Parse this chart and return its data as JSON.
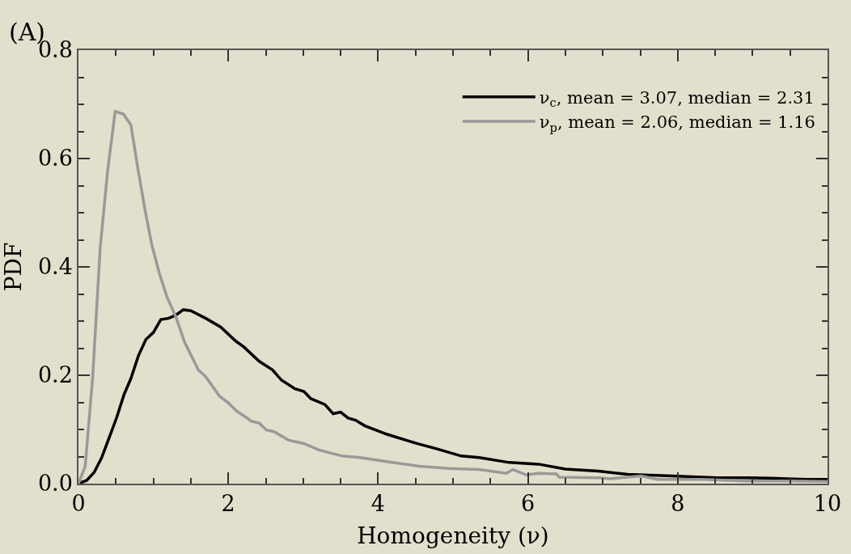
{
  "chart_data": {
    "type": "line",
    "title": "(A)",
    "xlabel": "Homogeneity (ν)",
    "ylabel": "PDF",
    "xlim": [
      0,
      10
    ],
    "ylim": [
      0,
      0.8
    ],
    "xticks": [
      0,
      {
        "value": 0.5,
        "label": null
      },
      {
        "value": 1,
        "label": null
      },
      {
        "value": 1.5,
        "label": null
      },
      2,
      {
        "value": 2.5,
        "label": null
      },
      {
        "value": 3,
        "label": null
      },
      {
        "value": 3.5,
        "label": null
      },
      4,
      {
        "value": 4.5,
        "label": null
      },
      {
        "value": 5,
        "label": null
      },
      {
        "value": 5.5,
        "label": null
      },
      6,
      {
        "value": 6.5,
        "label": null
      },
      {
        "value": 7,
        "label": null
      },
      {
        "value": 7.5,
        "label": null
      },
      8,
      {
        "value": 8.5,
        "label": null
      },
      {
        "value": 9,
        "label": null
      },
      {
        "value": 9.5,
        "label": null
      },
      10
    ],
    "yticks": [
      {
        "value": 0,
        "label": "0.0"
      },
      {
        "value": 0.05,
        "label": null
      },
      {
        "value": 0.1,
        "label": null
      },
      {
        "value": 0.15,
        "label": null
      },
      {
        "value": 0.2,
        "label": "0.2"
      },
      {
        "value": 0.25,
        "label": null
      },
      {
        "value": 0.3,
        "label": null
      },
      {
        "value": 0.35,
        "label": null
      },
      {
        "value": 0.4,
        "label": "0.4"
      },
      {
        "value": 0.45,
        "label": null
      },
      {
        "value": 0.5,
        "label": null
      },
      {
        "value": 0.55,
        "label": null
      },
      {
        "value": 0.6,
        "label": "0.6"
      },
      {
        "value": 0.65,
        "label": null
      },
      {
        "value": 0.7,
        "label": null
      },
      {
        "value": 0.75,
        "label": null
      },
      {
        "value": 0.8,
        "label": "0.8"
      }
    ],
    "grid": false,
    "legend": "top right",
    "line_style": "solid",
    "marker": "none",
    "series": [
      {
        "name": "ν$_{c}$, mean = 3.07, median = 2.31",
        "color": "#000000",
        "x": [
          0,
          0.11,
          0.21,
          0.31,
          0.41,
          0.51,
          0.61,
          0.7,
          0.8,
          0.9,
          1.0,
          1.1,
          1.2,
          1.3,
          1.4,
          1.5,
          1.7,
          1.9,
          2.1,
          2.21,
          2.41,
          2.59,
          2.71,
          2.89,
          3.01,
          3.1,
          3.29,
          3.4,
          3.5,
          3.6,
          3.7,
          3.82,
          4.12,
          4.52,
          4.79,
          5.11,
          5.35,
          5.75,
          6.14,
          6.5,
          6.94,
          7.33,
          7.93,
          8.52,
          8.92,
          9.24,
          9.71,
          10.0
        ],
        "values": [
          0,
          0.006,
          0.021,
          0.048,
          0.085,
          0.122,
          0.165,
          0.194,
          0.236,
          0.266,
          0.279,
          0.303,
          0.305,
          0.311,
          0.321,
          0.319,
          0.305,
          0.289,
          0.263,
          0.252,
          0.226,
          0.21,
          0.191,
          0.175,
          0.17,
          0.157,
          0.146,
          0.129,
          0.132,
          0.121,
          0.117,
          0.107,
          0.091,
          0.074,
          0.064,
          0.051,
          0.048,
          0.039,
          0.036,
          0.027,
          0.023,
          0.017,
          0.014,
          0.011,
          0.011,
          0.01,
          0.008,
          0.008
        ]
      },
      {
        "name": "ν$_{p}$, mean = 2.06, median = 1.16",
        "color": "#999999",
        "x": [
          0,
          0.09,
          0.19,
          0.29,
          0.39,
          0.49,
          0.6,
          0.7,
          0.79,
          0.89,
          0.98,
          1.08,
          1.18,
          1.3,
          1.42,
          1.6,
          1.7,
          1.88,
          2.0,
          2.12,
          2.21,
          2.31,
          2.41,
          2.51,
          2.61,
          2.81,
          3.01,
          3.21,
          3.52,
          3.76,
          4.15,
          4.55,
          4.95,
          5.35,
          5.71,
          5.8,
          5.98,
          6.14,
          6.38,
          6.42,
          6.94,
          7.1,
          7.51,
          7.73,
          8.33,
          8.92,
          9.52,
          10.0
        ],
        "values": [
          0,
          0.032,
          0.197,
          0.435,
          0.578,
          0.687,
          0.682,
          0.662,
          0.584,
          0.504,
          0.44,
          0.388,
          0.345,
          0.308,
          0.26,
          0.21,
          0.197,
          0.162,
          0.149,
          0.133,
          0.125,
          0.115,
          0.112,
          0.099,
          0.096,
          0.08,
          0.074,
          0.062,
          0.051,
          0.048,
          0.04,
          0.032,
          0.028,
          0.026,
          0.019,
          0.026,
          0.016,
          0.019,
          0.018,
          0.012,
          0.011,
          0.009,
          0.014,
          0.008,
          0.008,
          0.005,
          0.005,
          0.004
        ]
      }
    ]
  }
}
